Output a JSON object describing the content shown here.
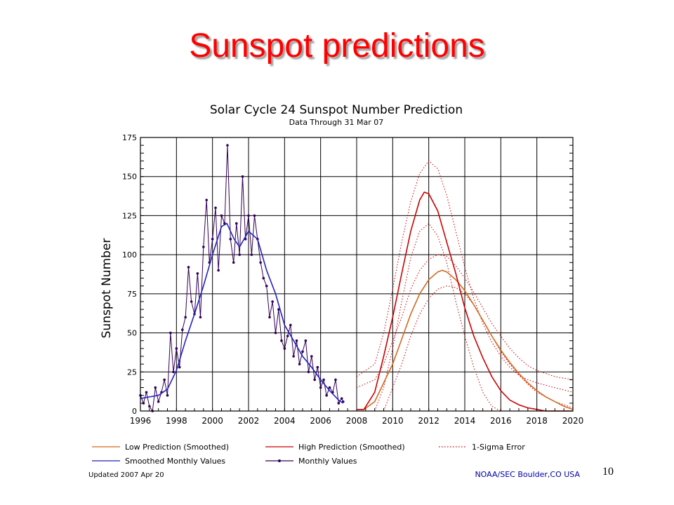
{
  "slide": {
    "title": "Sunspot predictions",
    "page_number": "10"
  },
  "chart_data": {
    "type": "line",
    "title": "Solar Cycle 24 Sunspot Number Prediction",
    "subtitle": "Data Through 31 Mar 07",
    "xlabel": "",
    "ylabel": "Sunspot Number",
    "xlim": [
      1996,
      2020
    ],
    "ylim": [
      0,
      175
    ],
    "x_ticks": [
      "1996",
      "1998",
      "2000",
      "2002",
      "2004",
      "2006",
      "2008",
      "2010",
      "2012",
      "2014",
      "2016",
      "2018",
      "2020"
    ],
    "y_ticks": [
      "0",
      "25",
      "50",
      "75",
      "100",
      "125",
      "150",
      "175"
    ],
    "grid": true,
    "footer_left": "Updated 2007 Apr 20",
    "footer_right": "NOAA/SEC Boulder,CO USA",
    "legend": [
      {
        "key": "low",
        "label": "Low Prediction (Smoothed)",
        "color": "#d2691e",
        "style": "solid"
      },
      {
        "key": "high",
        "label": "High Prediction (Smoothed)",
        "color": "#cc0000",
        "style": "solid"
      },
      {
        "key": "sigma",
        "label": "1-Sigma Error",
        "color": "#cc0000",
        "style": "dotted"
      },
      {
        "key": "smoothed",
        "label": "Smoothed Monthly Values",
        "color": "#2222bb",
        "style": "solid"
      },
      {
        "key": "monthly",
        "label": "Monthly Values",
        "color": "#330055",
        "style": "solid-markers"
      }
    ],
    "series": [
      {
        "name": "Monthly Values",
        "key": "monthly",
        "color": "#330055",
        "x": [
          1996.0,
          1996.17,
          1996.33,
          1996.5,
          1996.67,
          1996.83,
          1997.0,
          1997.17,
          1997.33,
          1997.5,
          1997.67,
          1997.83,
          1998.0,
          1998.17,
          1998.33,
          1998.5,
          1998.67,
          1998.83,
          1999.0,
          1999.17,
          1999.33,
          1999.5,
          1999.67,
          1999.83,
          2000.0,
          2000.17,
          2000.33,
          2000.5,
          2000.67,
          2000.83,
          2001.0,
          2001.17,
          2001.33,
          2001.5,
          2001.67,
          2001.83,
          2002.0,
          2002.17,
          2002.33,
          2002.5,
          2002.67,
          2002.83,
          2003.0,
          2003.17,
          2003.33,
          2003.5,
          2003.67,
          2003.83,
          2004.0,
          2004.17,
          2004.33,
          2004.5,
          2004.67,
          2004.83,
          2005.0,
          2005.17,
          2005.33,
          2005.5,
          2005.67,
          2005.83,
          2006.0,
          2006.17,
          2006.33,
          2006.5,
          2006.67,
          2006.83,
          2007.0,
          2007.17,
          2007.25
        ],
        "values": [
          10,
          5,
          12,
          3,
          0,
          15,
          6,
          12,
          20,
          10,
          50,
          25,
          40,
          28,
          52,
          60,
          92,
          70,
          62,
          88,
          60,
          105,
          135,
          95,
          110,
          130,
          90,
          125,
          120,
          170,
          110,
          95,
          120,
          100,
          150,
          110,
          125,
          100,
          125,
          110,
          95,
          85,
          80,
          60,
          70,
          50,
          65,
          45,
          40,
          48,
          55,
          35,
          45,
          30,
          38,
          45,
          25,
          35,
          20,
          28,
          15,
          20,
          10,
          15,
          12,
          20,
          5,
          8,
          6
        ]
      },
      {
        "name": "Smoothed Monthly Values",
        "key": "smoothed",
        "color": "#2222bb",
        "x": [
          1996.0,
          1996.5,
          1997.0,
          1997.5,
          1998.0,
          1998.5,
          1999.0,
          1999.5,
          2000.0,
          2000.5,
          2000.8,
          2001.2,
          2001.5,
          2002.0,
          2002.5,
          2003.0,
          2003.5,
          2004.0,
          2004.5,
          2005.0,
          2005.5,
          2006.0,
          2006.5,
          2007.0,
          2007.25
        ],
        "values": [
          8,
          9,
          10,
          14,
          26,
          45,
          62,
          80,
          100,
          118,
          120,
          110,
          105,
          115,
          110,
          90,
          75,
          55,
          45,
          35,
          28,
          20,
          13,
          7,
          5
        ]
      },
      {
        "name": "Low Prediction (Smoothed)",
        "key": "low",
        "color": "#d2691e",
        "x": [
          2008.0,
          2008.4,
          2009.0,
          2009.5,
          2010.0,
          2010.5,
          2011.0,
          2011.5,
          2012.0,
          2012.5,
          2012.75,
          2013.0,
          2013.5,
          2014.0,
          2014.5,
          2015.0,
          2015.5,
          2016.0,
          2016.5,
          2017.0,
          2017.5,
          2018.0,
          2018.5,
          2019.0,
          2019.5,
          2020.0
        ],
        "values": [
          1,
          1,
          6,
          18,
          30,
          46,
          62,
          75,
          84,
          89,
          90,
          89,
          84,
          77,
          68,
          58,
          48,
          39,
          31,
          24,
          18,
          13,
          9,
          6,
          3,
          1
        ]
      },
      {
        "name": "High Prediction (Smoothed)",
        "key": "high",
        "color": "#cc0000",
        "x": [
          2008.0,
          2008.4,
          2009.0,
          2009.5,
          2010.0,
          2010.5,
          2011.0,
          2011.5,
          2011.75,
          2012.0,
          2012.5,
          2013.0,
          2013.5,
          2014.0,
          2014.5,
          2015.0,
          2015.5,
          2016.0,
          2016.5,
          2017.0,
          2017.5,
          2018.0,
          2018.5,
          2019.0,
          2019.5,
          2020.0
        ],
        "values": [
          1,
          1,
          12,
          35,
          60,
          88,
          115,
          135,
          140,
          139,
          128,
          108,
          88,
          66,
          48,
          34,
          22,
          13,
          7,
          4,
          2,
          1,
          0,
          0,
          0,
          0
        ]
      },
      {
        "name": "1-Sigma Error",
        "key": "sigma_high_upper",
        "color": "#cc0000",
        "x": [
          2008.0,
          2009.0,
          2009.5,
          2010.0,
          2010.5,
          2011.0,
          2011.5,
          2012.0,
          2012.5,
          2013.0,
          2013.5,
          2014.0,
          2014.5,
          2015.0,
          2015.5,
          2016.0,
          2016.5,
          2017.0,
          2017.5,
          2018.0,
          2019.0,
          2020.0
        ],
        "values": [
          22,
          30,
          50,
          78,
          108,
          134,
          152,
          160,
          155,
          138,
          115,
          92,
          72,
          56,
          44,
          35,
          28,
          23,
          20,
          18,
          15,
          12
        ]
      },
      {
        "name": "1-Sigma Error",
        "key": "sigma_high_lower",
        "color": "#cc0000",
        "x": [
          2009.0,
          2009.5,
          2010.0,
          2010.5,
          2011.0,
          2011.5,
          2012.0,
          2012.5,
          2013.0,
          2013.5,
          2014.0,
          2014.5,
          2015.0,
          2015.5,
          2016.0
        ],
        "values": [
          0,
          15,
          40,
          70,
          98,
          115,
          120,
          112,
          95,
          70,
          48,
          28,
          12,
          3,
          0
        ]
      },
      {
        "name": "1-Sigma Error",
        "key": "sigma_low_upper",
        "color": "#cc0000",
        "x": [
          2008.0,
          2009.0,
          2009.5,
          2010.0,
          2010.5,
          2011.0,
          2011.5,
          2012.0,
          2012.5,
          2013.0,
          2013.5,
          2014.0,
          2014.5,
          2015.0,
          2015.5,
          2016.0,
          2016.5,
          2017.0,
          2017.5,
          2018.0,
          2019.0,
          2020.0
        ],
        "values": [
          15,
          20,
          30,
          45,
          60,
          78,
          90,
          97,
          100,
          99,
          93,
          85,
          76,
          66,
          56,
          48,
          40,
          34,
          29,
          26,
          22,
          20
        ]
      },
      {
        "name": "1-Sigma Error",
        "key": "sigma_low_lower",
        "color": "#cc0000",
        "x": [
          2009.5,
          2010.0,
          2010.5,
          2011.0,
          2011.5,
          2012.0,
          2012.5,
          2013.0,
          2013.5,
          2014.0,
          2014.5,
          2015.0,
          2015.5,
          2016.0,
          2016.5,
          2017.0,
          2017.5,
          2018.0,
          2019.0,
          2020.0
        ],
        "values": [
          0,
          15,
          30,
          48,
          62,
          72,
          78,
          80,
          79,
          75,
          68,
          58,
          48,
          38,
          30,
          23,
          17,
          12,
          6,
          2
        ]
      }
    ]
  }
}
